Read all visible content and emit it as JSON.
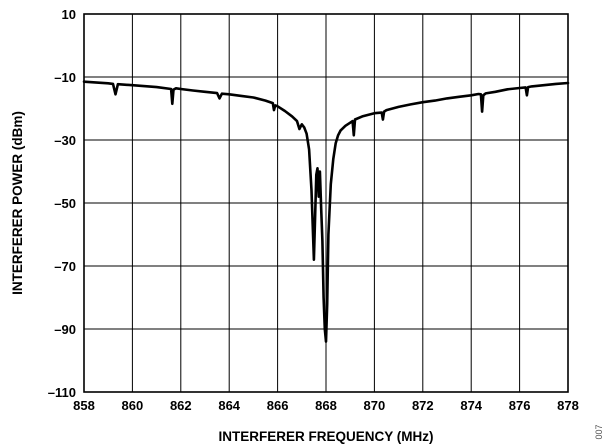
{
  "chart_data": {
    "type": "line",
    "title": "",
    "xlabel": "INTERFERER FREQUENCY (MHz)",
    "ylabel": "INTERFERER POWER (dBm)",
    "xlim": [
      858,
      878
    ],
    "ylim": [
      -110,
      10
    ],
    "x_ticks": [
      858,
      860,
      862,
      864,
      866,
      868,
      870,
      872,
      874,
      876,
      878
    ],
    "y_ticks": [
      10,
      -10,
      -30,
      -50,
      -70,
      -90,
      -110
    ],
    "x_tick_labels": [
      "858",
      "860",
      "862",
      "864",
      "866",
      "868",
      "870",
      "872",
      "874",
      "876",
      "878"
    ],
    "y_tick_labels": [
      "10",
      "–10",
      "–30",
      "–50",
      "–70",
      "–90",
      "–110"
    ],
    "grid": true,
    "legend": "none",
    "line_color": "#000000",
    "series": [
      {
        "x": [
          858,
          859,
          859.2,
          859.3,
          859.4,
          860,
          861,
          861.6,
          861.65,
          861.7,
          861.8,
          862,
          862.5,
          863,
          863.5,
          863.6,
          863.7,
          864,
          864.5,
          865,
          865.5,
          865.8,
          865.85,
          865.9,
          866,
          866.3,
          866.6,
          866.8,
          866.9,
          867,
          867.1,
          867.2,
          867.3,
          867.4,
          867.5,
          867.6,
          867.65,
          867.7,
          867.75,
          867.8,
          867.85,
          867.9,
          867.95,
          868,
          868.05,
          868.1,
          868.2,
          868.3,
          868.4,
          868.5,
          868.6,
          868.8,
          869,
          869.1,
          869.15,
          869.2,
          869.5,
          870,
          870.3,
          870.35,
          870.4,
          870.5,
          871,
          871.5,
          872,
          872.5,
          873,
          873.5,
          874,
          874.3,
          874.4,
          874.45,
          874.5,
          874.6,
          875,
          875.5,
          876,
          876.25,
          876.3,
          876.35,
          876.5,
          877,
          877.5,
          878
        ],
        "y": [
          -11.5,
          -12,
          -12.2,
          -15.5,
          -12.3,
          -12.6,
          -13.2,
          -13.8,
          -18.5,
          -14,
          -13.6,
          -13.8,
          -14.3,
          -14.7,
          -15.1,
          -16.8,
          -15.3,
          -15.5,
          -16,
          -16.5,
          -17.5,
          -18.3,
          -20.5,
          -19,
          -19.3,
          -20.8,
          -22.5,
          -24,
          -26.5,
          -25,
          -26,
          -28,
          -33,
          -46,
          -68,
          -41,
          -39,
          -48,
          -40,
          -52,
          -62,
          -80,
          -90,
          -94,
          -82,
          -60,
          -44,
          -36,
          -31,
          -28.5,
          -27,
          -25.5,
          -24.5,
          -24,
          -28.5,
          -23.5,
          -22.5,
          -21.5,
          -21.3,
          -23.5,
          -21,
          -20.5,
          -19.5,
          -18.7,
          -18,
          -17.5,
          -16.8,
          -16.3,
          -15.8,
          -15.4,
          -15.5,
          -21,
          -15.8,
          -15.2,
          -14.7,
          -13.9,
          -13.5,
          -13.3,
          -15.8,
          -13.2,
          -13,
          -12.6,
          -12.2,
          -11.9
        ]
      }
    ]
  },
  "figure_id": "007"
}
